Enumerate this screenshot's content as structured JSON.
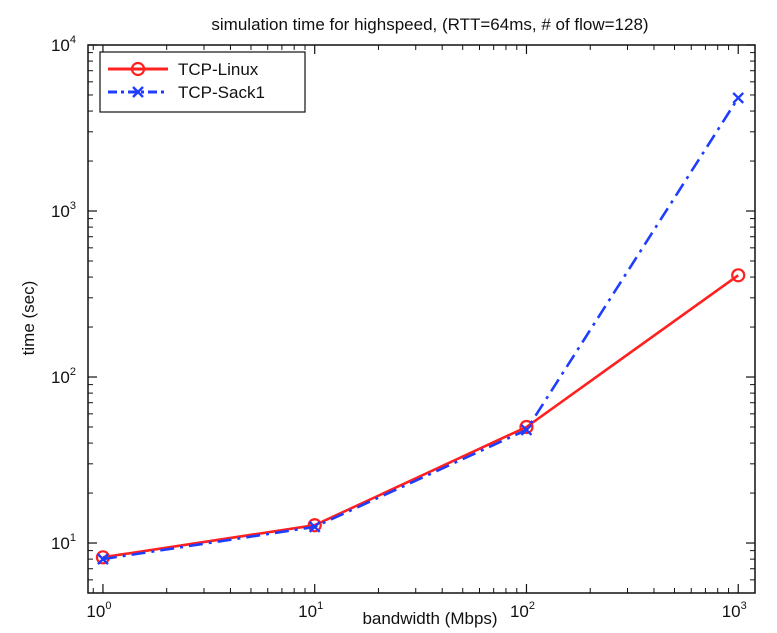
{
  "chart_data": {
    "type": "line",
    "title": "simulation time for highspeed, (RTT=64ms, # of flow=128)",
    "xlabel": "bandwidth (Mbps)",
    "ylabel": "time (sec)",
    "x_scale": "log",
    "y_scale": "log",
    "xlim": [
      0.85,
      1200
    ],
    "ylim": [
      5,
      10000
    ],
    "x": [
      1,
      10,
      100,
      1000
    ],
    "x_ticks": [
      {
        "value": 1,
        "base": "10",
        "exp": "0"
      },
      {
        "value": 10,
        "base": "10",
        "exp": "1"
      },
      {
        "value": 100,
        "base": "10",
        "exp": "2"
      },
      {
        "value": 1000,
        "base": "10",
        "exp": "3"
      }
    ],
    "y_ticks": [
      {
        "value": 10,
        "base": "10",
        "exp": "1"
      },
      {
        "value": 100,
        "base": "10",
        "exp": "2"
      },
      {
        "value": 1000,
        "base": "10",
        "exp": "3"
      },
      {
        "value": 10000,
        "base": "10",
        "exp": "4"
      }
    ],
    "grid": false,
    "legend_position": "top-left",
    "series": [
      {
        "name": "TCP-Linux",
        "values": [
          8.2,
          12.8,
          50,
          410
        ],
        "color": "#ff2020",
        "line_style": "solid",
        "marker": "circle"
      },
      {
        "name": "TCP-Sack1",
        "values": [
          8.0,
          12.5,
          48,
          4800
        ],
        "color": "#1f3dff",
        "line_style": "dashdot",
        "marker": "x"
      }
    ]
  }
}
